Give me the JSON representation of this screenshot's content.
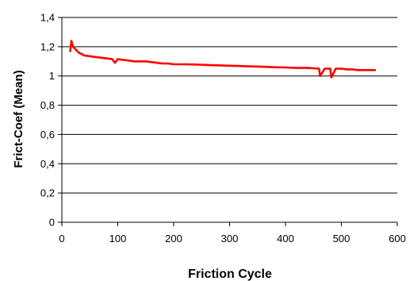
{
  "chart_data": {
    "type": "line",
    "title": "",
    "xlabel": "Friction Cycle",
    "ylabel": "Frict-Coef (Mean)",
    "xlim": [
      0,
      600
    ],
    "ylim": [
      0,
      1.4
    ],
    "xticks": [
      "0",
      "100",
      "200",
      "300",
      "400",
      "500",
      "600"
    ],
    "yticks": [
      "0",
      "0,2",
      "0,4",
      "0,6",
      "0,8",
      "1",
      "1,2",
      "1,4"
    ],
    "grid": "horizontal",
    "legend": "none",
    "series": [
      {
        "color": "#ff0000",
        "x": [
          15,
          17,
          20,
          25,
          30,
          40,
          50,
          60,
          70,
          80,
          90,
          95,
          100,
          110,
          120,
          130,
          140,
          150,
          160,
          170,
          180,
          190,
          200,
          220,
          240,
          260,
          280,
          300,
          320,
          340,
          360,
          380,
          400,
          420,
          440,
          460,
          462,
          470,
          480,
          482,
          490,
          500,
          510,
          520,
          530,
          540,
          550,
          560
        ],
        "y": [
          1.17,
          1.24,
          1.2,
          1.18,
          1.16,
          1.14,
          1.135,
          1.13,
          1.125,
          1.12,
          1.115,
          1.09,
          1.115,
          1.11,
          1.105,
          1.1,
          1.1,
          1.1,
          1.095,
          1.09,
          1.085,
          1.085,
          1.08,
          1.08,
          1.078,
          1.075,
          1.073,
          1.07,
          1.068,
          1.065,
          1.063,
          1.06,
          1.058,
          1.055,
          1.055,
          1.05,
          1.0,
          1.05,
          1.05,
          0.99,
          1.05,
          1.05,
          1.045,
          1.045,
          1.04,
          1.04,
          1.04,
          1.04
        ]
      }
    ]
  }
}
